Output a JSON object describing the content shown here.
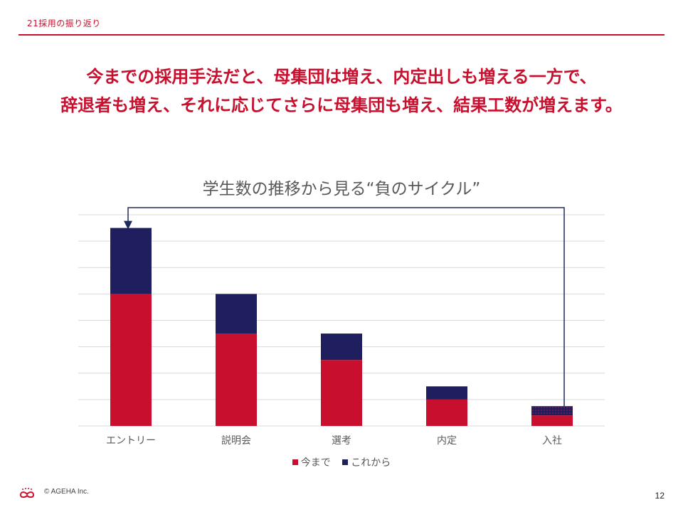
{
  "header": {
    "section_label": "21採用の振り返り"
  },
  "headline": {
    "line1": "今までの採用手法だと、母集団は増え、内定出しも増える一方で、",
    "line2": "辞退者も増え、それに応じてさらに母集団も増え、結果工数が増えます。"
  },
  "colors": {
    "accent": "#c8102e",
    "bar_past": "#c8102e",
    "bar_future": "#1f1f5f",
    "gridline": "#d9d9d9",
    "arrow": "#1f2a5f"
  },
  "chart_data": {
    "type": "bar",
    "stacked": true,
    "title": "学生数の推移から見る“負のサイクル”",
    "categories": [
      "エントリー",
      "説明会",
      "選考",
      "内定",
      "入社"
    ],
    "series": [
      {
        "name": "今まで",
        "values": [
          100,
          70,
          50,
          20,
          8
        ]
      },
      {
        "name": "これから",
        "values": [
          50,
          30,
          20,
          10,
          7
        ]
      }
    ],
    "ylim": [
      0,
      160
    ],
    "gridlines": 8,
    "y_tick_labels_shown": false,
    "annotation": "arrow from 入社 back to エントリー",
    "legend_position": "bottom"
  },
  "footer": {
    "copyright": "© AGEHA Inc.",
    "page_number": "12",
    "logo": "ageha-logo-icon"
  }
}
